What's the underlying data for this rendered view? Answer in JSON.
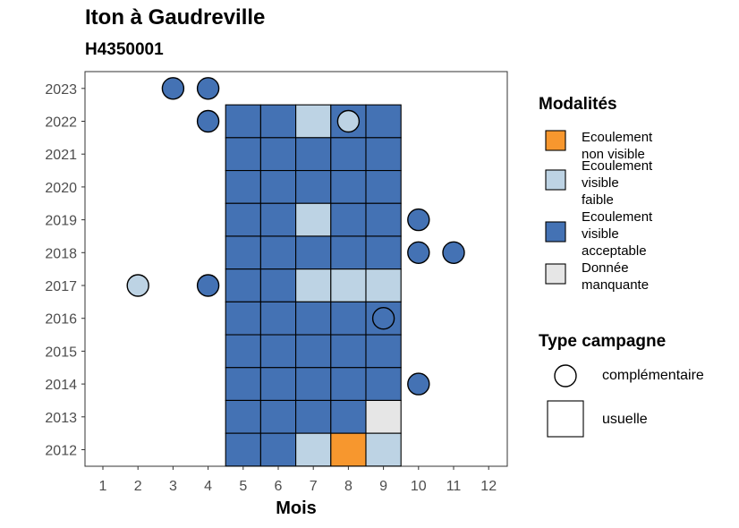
{
  "title": "Iton à Gaudreville",
  "subtitle": "H4350001",
  "chart_data": {
    "type": "heatmap",
    "xlabel": "Mois",
    "ylabel": "",
    "x_ticks": [
      "1",
      "2",
      "3",
      "4",
      "5",
      "6",
      "7",
      "8",
      "9",
      "10",
      "11",
      "12"
    ],
    "y_ticks": [
      "2012",
      "2013",
      "2014",
      "2015",
      "2016",
      "2017",
      "2018",
      "2019",
      "2020",
      "2021",
      "2022",
      "2023"
    ],
    "colors": {
      "Ecoulement non visible": "#F7972E",
      "Ecoulement visible faible": "#BDD3E4",
      "Ecoulement visible acceptable": "#4472B4",
      "Donnée manquante": "#E6E6E6"
    },
    "usuelle_cells": [
      {
        "year": 2022,
        "month": 5,
        "status": "Ecoulement visible acceptable"
      },
      {
        "year": 2022,
        "month": 6,
        "status": "Ecoulement visible acceptable"
      },
      {
        "year": 2022,
        "month": 7,
        "status": "Ecoulement visible faible"
      },
      {
        "year": 2022,
        "month": 8,
        "status": "Ecoulement visible acceptable"
      },
      {
        "year": 2022,
        "month": 9,
        "status": "Ecoulement visible acceptable"
      },
      {
        "year": 2021,
        "month": 5,
        "status": "Ecoulement visible acceptable"
      },
      {
        "year": 2021,
        "month": 6,
        "status": "Ecoulement visible acceptable"
      },
      {
        "year": 2021,
        "month": 7,
        "status": "Ecoulement visible acceptable"
      },
      {
        "year": 2021,
        "month": 8,
        "status": "Ecoulement visible acceptable"
      },
      {
        "year": 2021,
        "month": 9,
        "status": "Ecoulement visible acceptable"
      },
      {
        "year": 2020,
        "month": 5,
        "status": "Ecoulement visible acceptable"
      },
      {
        "year": 2020,
        "month": 6,
        "status": "Ecoulement visible acceptable"
      },
      {
        "year": 2020,
        "month": 7,
        "status": "Ecoulement visible acceptable"
      },
      {
        "year": 2020,
        "month": 8,
        "status": "Ecoulement visible acceptable"
      },
      {
        "year": 2020,
        "month": 9,
        "status": "Ecoulement visible acceptable"
      },
      {
        "year": 2019,
        "month": 5,
        "status": "Ecoulement visible acceptable"
      },
      {
        "year": 2019,
        "month": 6,
        "status": "Ecoulement visible acceptable"
      },
      {
        "year": 2019,
        "month": 7,
        "status": "Ecoulement visible faible"
      },
      {
        "year": 2019,
        "month": 8,
        "status": "Ecoulement visible acceptable"
      },
      {
        "year": 2019,
        "month": 9,
        "status": "Ecoulement visible acceptable"
      },
      {
        "year": 2018,
        "month": 5,
        "status": "Ecoulement visible acceptable"
      },
      {
        "year": 2018,
        "month": 6,
        "status": "Ecoulement visible acceptable"
      },
      {
        "year": 2018,
        "month": 7,
        "status": "Ecoulement visible acceptable"
      },
      {
        "year": 2018,
        "month": 8,
        "status": "Ecoulement visible acceptable"
      },
      {
        "year": 2018,
        "month": 9,
        "status": "Ecoulement visible acceptable"
      },
      {
        "year": 2017,
        "month": 5,
        "status": "Ecoulement visible acceptable"
      },
      {
        "year": 2017,
        "month": 6,
        "status": "Ecoulement visible acceptable"
      },
      {
        "year": 2017,
        "month": 7,
        "status": "Ecoulement visible faible"
      },
      {
        "year": 2017,
        "month": 8,
        "status": "Ecoulement visible faible"
      },
      {
        "year": 2017,
        "month": 9,
        "status": "Ecoulement visible faible"
      },
      {
        "year": 2016,
        "month": 5,
        "status": "Ecoulement visible acceptable"
      },
      {
        "year": 2016,
        "month": 6,
        "status": "Ecoulement visible acceptable"
      },
      {
        "year": 2016,
        "month": 7,
        "status": "Ecoulement visible acceptable"
      },
      {
        "year": 2016,
        "month": 8,
        "status": "Ecoulement visible acceptable"
      },
      {
        "year": 2016,
        "month": 9,
        "status": "Ecoulement visible acceptable"
      },
      {
        "year": 2015,
        "month": 5,
        "status": "Ecoulement visible acceptable"
      },
      {
        "year": 2015,
        "month": 6,
        "status": "Ecoulement visible acceptable"
      },
      {
        "year": 2015,
        "month": 7,
        "status": "Ecoulement visible acceptable"
      },
      {
        "year": 2015,
        "month": 8,
        "status": "Ecoulement visible acceptable"
      },
      {
        "year": 2015,
        "month": 9,
        "status": "Ecoulement visible acceptable"
      },
      {
        "year": 2014,
        "month": 5,
        "status": "Ecoulement visible acceptable"
      },
      {
        "year": 2014,
        "month": 6,
        "status": "Ecoulement visible acceptable"
      },
      {
        "year": 2014,
        "month": 7,
        "status": "Ecoulement visible acceptable"
      },
      {
        "year": 2014,
        "month": 8,
        "status": "Ecoulement visible acceptable"
      },
      {
        "year": 2014,
        "month": 9,
        "status": "Ecoulement visible acceptable"
      },
      {
        "year": 2013,
        "month": 5,
        "status": "Ecoulement visible acceptable"
      },
      {
        "year": 2013,
        "month": 6,
        "status": "Ecoulement visible acceptable"
      },
      {
        "year": 2013,
        "month": 7,
        "status": "Ecoulement visible acceptable"
      },
      {
        "year": 2013,
        "month": 8,
        "status": "Ecoulement visible acceptable"
      },
      {
        "year": 2013,
        "month": 9,
        "status": "Donnée manquante"
      },
      {
        "year": 2012,
        "month": 5,
        "status": "Ecoulement visible acceptable"
      },
      {
        "year": 2012,
        "month": 6,
        "status": "Ecoulement visible acceptable"
      },
      {
        "year": 2012,
        "month": 7,
        "status": "Ecoulement visible faible"
      },
      {
        "year": 2012,
        "month": 8,
        "status": "Ecoulement non visible"
      },
      {
        "year": 2012,
        "month": 9,
        "status": "Ecoulement visible faible"
      }
    ],
    "complementaire_points": [
      {
        "year": 2023,
        "month": 3,
        "status": "Ecoulement visible acceptable"
      },
      {
        "year": 2023,
        "month": 4,
        "status": "Ecoulement visible acceptable"
      },
      {
        "year": 2022,
        "month": 4,
        "status": "Ecoulement visible acceptable"
      },
      {
        "year": 2022,
        "month": 8,
        "status": "Ecoulement visible faible"
      },
      {
        "year": 2019,
        "month": 10,
        "status": "Ecoulement visible acceptable"
      },
      {
        "year": 2018,
        "month": 10,
        "status": "Ecoulement visible acceptable"
      },
      {
        "year": 2018,
        "month": 11,
        "status": "Ecoulement visible acceptable"
      },
      {
        "year": 2017,
        "month": 2,
        "status": "Ecoulement visible faible"
      },
      {
        "year": 2017,
        "month": 4,
        "status": "Ecoulement visible acceptable"
      },
      {
        "year": 2016,
        "month": 9,
        "status": "Ecoulement visible acceptable"
      },
      {
        "year": 2014,
        "month": 10,
        "status": "Ecoulement visible acceptable"
      }
    ]
  },
  "legend": {
    "modalites_title": "Modalités",
    "modalites": [
      {
        "label_lines": [
          "Ecoulement",
          "non visible"
        ],
        "color": "#F7972E"
      },
      {
        "label_lines": [
          "Ecoulement",
          "visible",
          "faible"
        ],
        "color": "#BDD3E4"
      },
      {
        "label_lines": [
          "Ecoulement",
          "visible",
          "acceptable"
        ],
        "color": "#4472B4"
      },
      {
        "label_lines": [
          "Donnée",
          "manquante"
        ],
        "color": "#E6E6E6"
      }
    ],
    "campagne_title": "Type campagne",
    "campagne": [
      "complémentaire",
      "usuelle"
    ]
  }
}
